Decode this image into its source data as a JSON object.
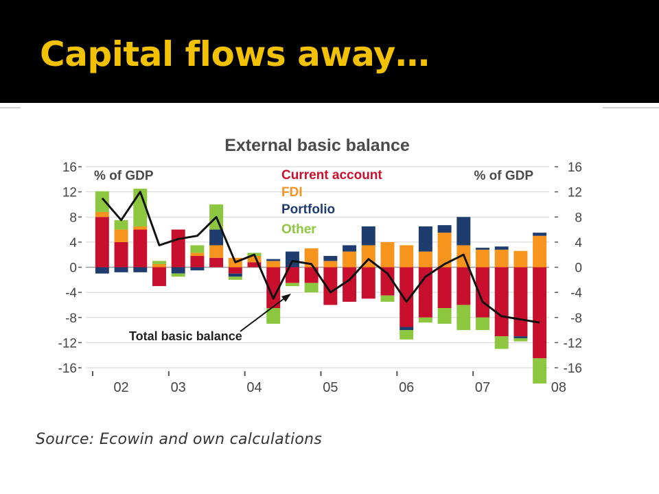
{
  "slide": {
    "title": "Capital flows away…",
    "source": "Source: Ecowin and own calculations"
  },
  "colors": {
    "title": "#f2c200",
    "current_account": "#c8102e",
    "fdi": "#f7941d",
    "portfolio": "#1f3c6e",
    "other": "#8dc63f",
    "total_line": "#111111"
  },
  "chart_data": {
    "type": "bar",
    "subtype": "stacked bar with line overlay",
    "title": "External basic balance",
    "ylabel_left": "% of GDP",
    "ylabel_right": "% of GDP",
    "ylim": [
      -16,
      16
    ],
    "yticks": [
      16,
      12,
      8,
      4,
      0,
      -4,
      -8,
      -12,
      -16
    ],
    "grid": true,
    "legend": "top-center",
    "x_tick_labels": [
      "02",
      "03",
      "04",
      "05",
      "06",
      "07",
      "08"
    ],
    "label_quarter_index": [
      1,
      4,
      8,
      12,
      16,
      20,
      24
    ],
    "series": [
      {
        "name": "Current account",
        "color_key": "current_account",
        "values": [
          8,
          4,
          6,
          -3,
          6,
          1.8,
          1.5,
          -1,
          0.8,
          -6.5,
          -2.5,
          -2.5,
          -6,
          -5.5,
          -5,
          -4.5,
          -9.5,
          -8,
          -6.5,
          -6,
          -8,
          -11,
          -11,
          -14.5
        ]
      },
      {
        "name": "FDI",
        "color_key": "fdi",
        "values": [
          0.8,
          2,
          0.5,
          0.5,
          0,
          0.5,
          2,
          1.5,
          1,
          1,
          0,
          3,
          1,
          2.5,
          3.5,
          4,
          3.5,
          2.5,
          5.5,
          3.5,
          2.8,
          2.8,
          2.6,
          5
        ]
      },
      {
        "name": "Portfolio",
        "color_key": "portfolio",
        "values": [
          -1,
          -0.8,
          -0.8,
          0,
          -1,
          -0.5,
          2.5,
          -0.5,
          0,
          0.3,
          2.5,
          0,
          0.8,
          1,
          3,
          0,
          -0.5,
          4,
          1.2,
          4.5,
          0.3,
          0.5,
          -0.3,
          0.5
        ]
      },
      {
        "name": "Other",
        "color_key": "other",
        "values": [
          3.3,
          1.5,
          6,
          0.5,
          -0.5,
          1.2,
          4,
          -0.5,
          0.5,
          -2.5,
          -0.5,
          -1.5,
          0,
          0,
          0,
          -1,
          -1.5,
          -0.8,
          -2.5,
          -4,
          -2,
          -2,
          -0.5,
          -4
        ]
      },
      {
        "name": "Total basic balance",
        "type": "line",
        "color_key": "total_line",
        "values": [
          11,
          7.5,
          12,
          3.5,
          4.5,
          5,
          8,
          0.8,
          2,
          -5,
          1,
          0.5,
          -4,
          -2,
          1.3,
          -1,
          -5.5,
          -1.5,
          0.5,
          2,
          -5.5,
          -7.8,
          -8.3,
          -8.8
        ]
      }
    ],
    "annotation": {
      "text": "Total basic balance"
    }
  }
}
